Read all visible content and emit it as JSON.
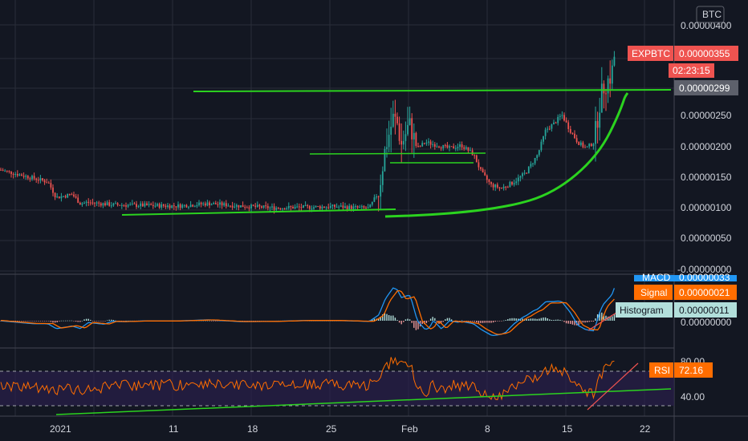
{
  "symbol": {
    "name": "EXPBTC",
    "price": "0.00000355",
    "countdown": "02:23:15",
    "currency": "BTC",
    "line_label": "0.00000299"
  },
  "colors": {
    "background": "#131722",
    "grid": "#2a2e39",
    "up": "#26a69a",
    "down": "#ef5350",
    "trendline": "#2bd31f",
    "macd": "#2196f3",
    "signal": "#ff6d00",
    "rsi": "#ff6d00",
    "rsi_band": "#2a1f4a",
    "price_tag": "#ef5350",
    "line_tag": "#5d606b"
  },
  "price_axis": {
    "ticks": [
      "0.00000400",
      "0.00000250",
      "0.00000200",
      "0.00000150",
      "0.00000100",
      "0.00000050",
      "-0.00000000"
    ]
  },
  "macd_panel": {
    "macd_label": "MACD",
    "macd_value": "0.00000033",
    "signal_label": "Signal",
    "signal_value": "0.00000021",
    "histogram_label": "Histogram",
    "histogram_value": "0.00000011",
    "axis_tick": "0.00000000"
  },
  "rsi_panel": {
    "label": "RSI",
    "value": "72.16",
    "ticks": [
      "80.00",
      "40.00"
    ]
  },
  "time_axis": {
    "ticks": [
      "2021",
      "11",
      "18",
      "25",
      "Feb",
      "8",
      "15",
      "22"
    ]
  },
  "chart_data": {
    "type": "candlestick",
    "currency": "BTC",
    "y_axis_ticks": [
      4e-06,
      2.5e-06,
      2e-06,
      1.5e-06,
      1e-06,
      5e-07,
      0
    ],
    "last_price": 3.55e-06,
    "horizontal_line": 2.99e-06,
    "approx_close_path": [
      {
        "period": "late Dec",
        "close": 1.6e-06
      },
      {
        "period": "2021",
        "close": 1.3e-06
      },
      {
        "period": "11",
        "close": 1.08e-06
      },
      {
        "period": "18",
        "close": 1.05e-06
      },
      {
        "period": "25",
        "close": 1.02e-06
      },
      {
        "period": "end Jan",
        "close": 2.5e-06
      },
      {
        "period": "Feb",
        "close": 2e-06
      },
      {
        "period": "8",
        "close": 1.3e-06
      },
      {
        "period": "mid Feb",
        "close": 2.6e-06
      },
      {
        "period": "15",
        "close": 2e-06
      },
      {
        "period": "last",
        "close": 3.55e-06
      }
    ],
    "macd": {
      "macd": 3.3e-07,
      "signal": 2.1e-07,
      "histogram": 1.1e-07
    },
    "rsi": {
      "value": 72.16,
      "bands": [
        70,
        30
      ],
      "ticks": [
        80,
        40
      ]
    }
  }
}
